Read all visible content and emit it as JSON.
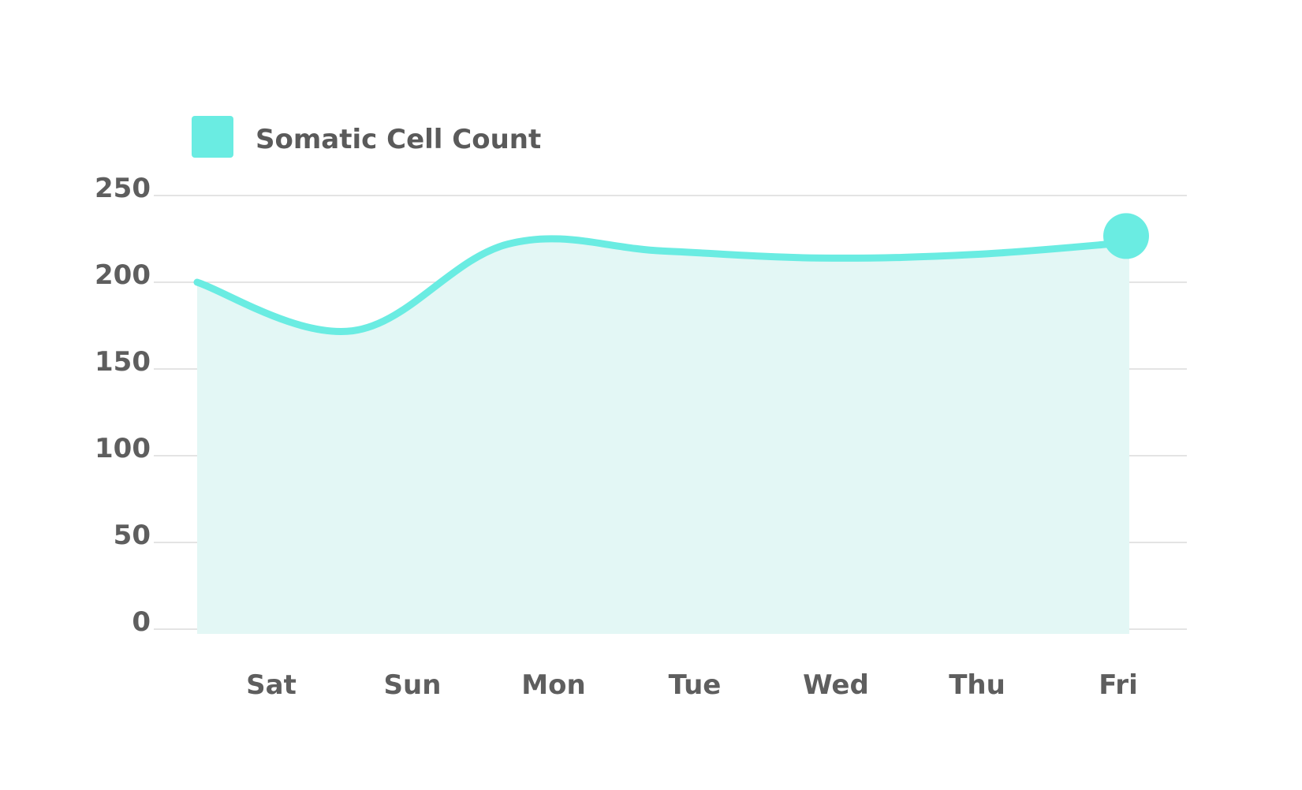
{
  "chart_data": {
    "type": "area",
    "categories": [
      "Sat",
      "Sun",
      "Mon",
      "Tue",
      "Wed",
      "Thu",
      "Fri"
    ],
    "series": [
      {
        "name": "Somatic Cell Count",
        "values": [
          200,
          172,
          222,
          218,
          214,
          216,
          223
        ],
        "color": "#6aece2",
        "fill": "#e3f7f5"
      }
    ],
    "yticks": [
      0,
      50,
      100,
      150,
      200,
      250
    ],
    "ylim": [
      0,
      250
    ],
    "grid": true,
    "legend_position": "top-left",
    "marker": "end-point"
  }
}
